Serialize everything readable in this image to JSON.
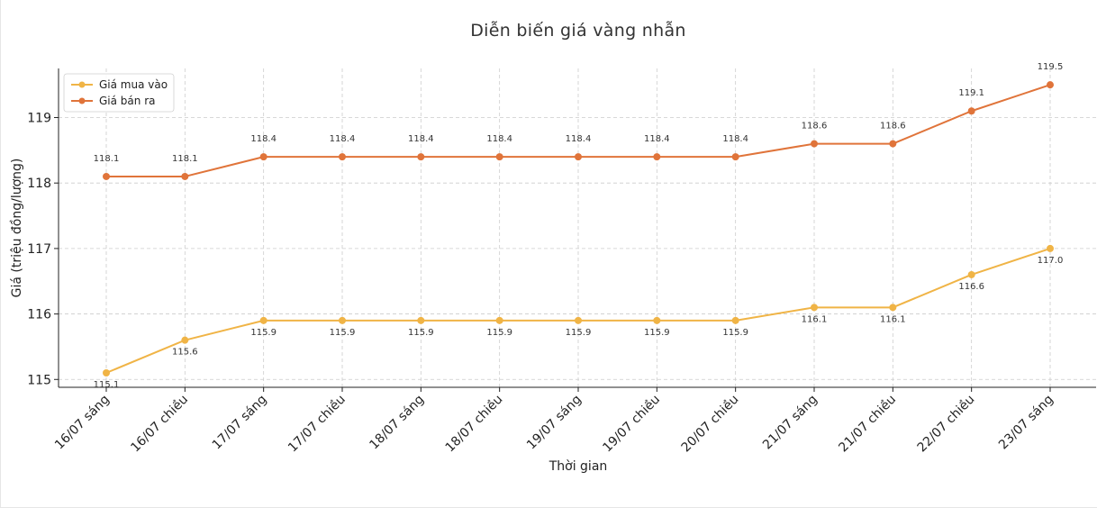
{
  "chart_data": {
    "type": "line",
    "title": "Diễn biến giá vàng nhẫn",
    "xlabel": "Thời gian",
    "ylabel": "Giá (triệu đồng/lượng)",
    "categories": [
      "16/07 sáng",
      "16/07 chiều",
      "17/07 sáng",
      "17/07 chiều",
      "18/07 sáng",
      "18/07 chiều",
      "19/07 sáng",
      "19/07 chiều",
      "20/07 chiều",
      "21/07 sáng",
      "21/07 chiều",
      "22/07 chiều",
      "23/07 sáng"
    ],
    "series": [
      {
        "name": "Giá mua vào",
        "color": "#f0b446",
        "label_position": "below",
        "values": [
          115.1,
          115.6,
          115.9,
          115.9,
          115.9,
          115.9,
          115.9,
          115.9,
          115.9,
          116.1,
          116.1,
          116.6,
          117.0
        ]
      },
      {
        "name": "Giá bán ra",
        "color": "#e0743a",
        "label_position": "above",
        "values": [
          118.1,
          118.1,
          118.4,
          118.4,
          118.4,
          118.4,
          118.4,
          118.4,
          118.4,
          118.6,
          118.6,
          119.1,
          119.5
        ]
      }
    ],
    "ylim": [
      114.88,
      119.75
    ],
    "yticks": [
      115,
      116,
      117,
      118,
      119
    ],
    "grid": true,
    "legend_position": "top-left"
  }
}
